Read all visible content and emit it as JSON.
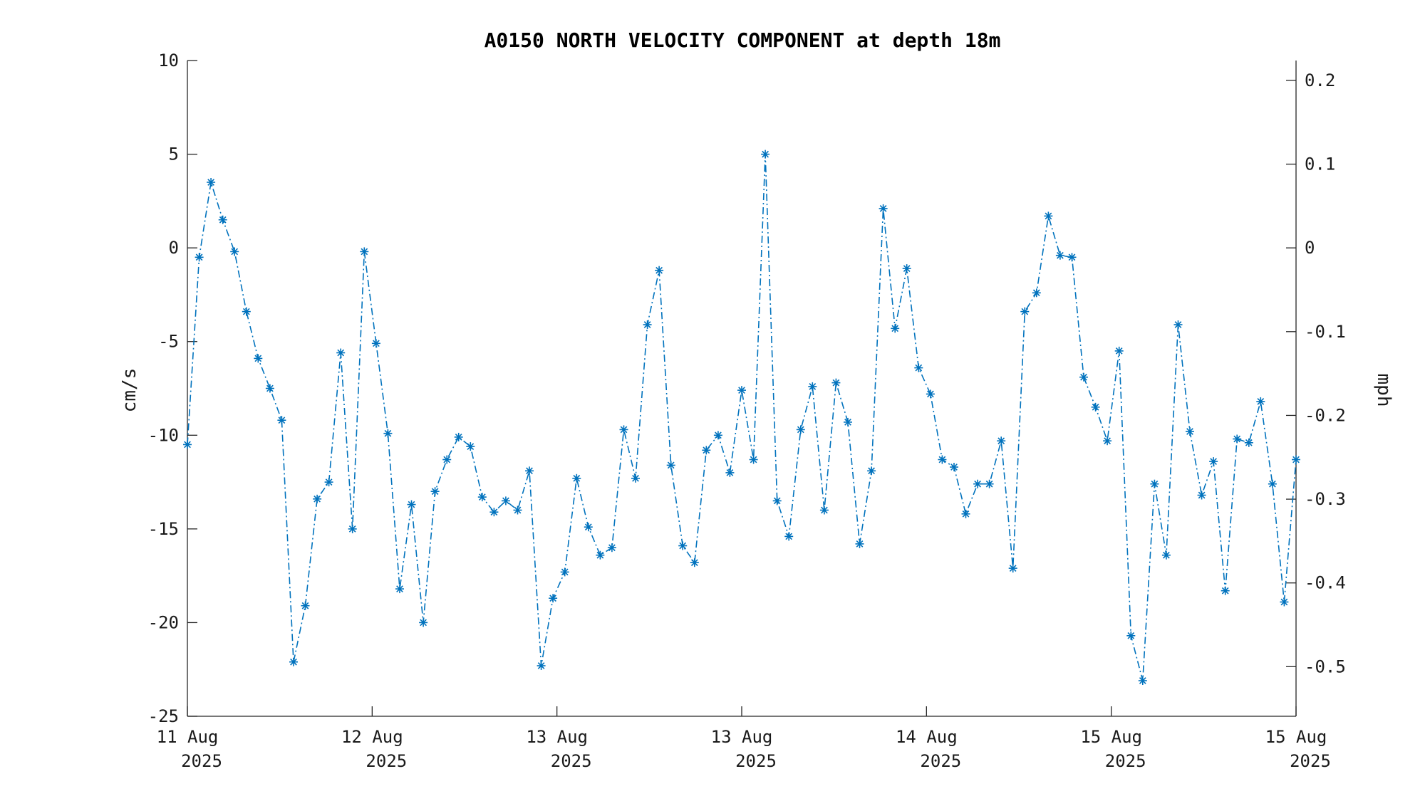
{
  "chart_data": {
    "type": "line",
    "title": "A0150 NORTH VELOCITY COMPONENT at depth 18m",
    "ylabel": "cm/s",
    "y2label": "mph",
    "ylim": [
      -25,
      10
    ],
    "y2lim": [
      -0.5592,
      0.2237
    ],
    "yticks": [
      "10",
      "5",
      "0",
      "-5",
      "-10",
      "-15",
      "-20",
      "-25"
    ],
    "y2ticks": [
      "0.2",
      "0.1",
      "0",
      "-0.1",
      "-0.2",
      "-0.3",
      "-0.4",
      "-0.5"
    ],
    "x_ticks": [
      {
        "line1": "11 Aug",
        "line2": "2025"
      },
      {
        "line1": "12 Aug",
        "line2": "2025"
      },
      {
        "line1": "13 Aug",
        "line2": "2025"
      },
      {
        "line1": "13 Aug",
        "line2": "2025"
      },
      {
        "line1": "14 Aug",
        "line2": "2025"
      },
      {
        "line1": "15 Aug",
        "line2": "2025"
      },
      {
        "line1": "15 Aug",
        "line2": "2025"
      }
    ],
    "grid": false,
    "marker": "asterisk",
    "line_style": "dash-dot",
    "color": "#0072BD",
    "series": [
      {
        "values": [
          -10.5,
          -0.5,
          3.5,
          1.5,
          -0.2,
          -3.4,
          -5.9,
          -7.5,
          -9.2,
          -22.1,
          -19.1,
          -13.4,
          -12.5,
          -5.6,
          -15.0,
          -0.2,
          -5.1,
          -9.9,
          -18.2,
          -13.7,
          -20.0,
          -13.0,
          -11.3,
          -10.1,
          -10.6,
          -13.3,
          -14.1,
          -13.5,
          -14.0,
          -11.9,
          -22.3,
          -18.7,
          -17.3,
          -12.3,
          -14.9,
          -16.4,
          -16.0,
          -9.7,
          -12.3,
          -4.1,
          -1.2,
          -11.6,
          -15.9,
          -16.8,
          -10.8,
          -10.0,
          -12.0,
          -7.6,
          -11.3,
          5.0,
          -13.5,
          -15.4,
          -9.7,
          -7.4,
          -14.0,
          -7.2,
          -9.3,
          -15.8,
          -11.9,
          2.1,
          -4.3,
          -1.1,
          -6.4,
          -7.8,
          -11.3,
          -11.7,
          -14.2,
          -12.6,
          -12.6,
          -10.3,
          -17.1,
          -3.4,
          -2.4,
          1.7,
          -0.4,
          -0.5,
          -6.9,
          -8.5,
          -10.3,
          -5.5,
          -20.7,
          -23.1,
          -12.6,
          -16.4,
          -4.1,
          -9.8,
          -13.2,
          -11.4,
          -18.3,
          -10.2,
          -10.4,
          -8.2,
          -12.6,
          -18.9,
          -11.3
        ]
      }
    ]
  }
}
